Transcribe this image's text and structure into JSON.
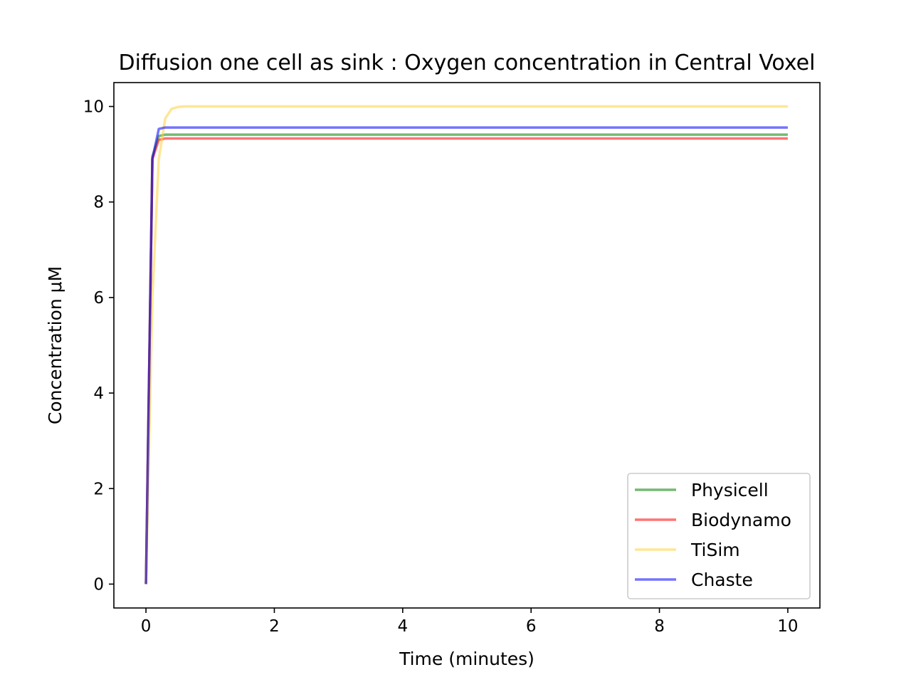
{
  "chart_data": {
    "type": "line",
    "title": "Diffusion one cell as sink : Oxygen concentration in Central Voxel",
    "xlabel": "Time (minutes)",
    "ylabel": "Concentration μM",
    "xlim": [
      -0.5,
      10.5
    ],
    "ylim": [
      -0.5,
      10.5
    ],
    "xticks": [
      0,
      2,
      4,
      6,
      8,
      10
    ],
    "yticks": [
      0,
      2,
      4,
      6,
      8,
      10
    ],
    "grid": false,
    "legend_position": "bottom-right",
    "series": [
      {
        "name": "Physicell",
        "color": "#008000",
        "x": [
          0,
          0.1,
          0.2,
          0.3,
          1,
          2,
          4,
          6,
          8,
          10
        ],
        "y": [
          0,
          8.95,
          9.38,
          9.41,
          9.41,
          9.41,
          9.41,
          9.41,
          9.41,
          9.41
        ]
      },
      {
        "name": "Biodynamo",
        "color": "#ff0000",
        "x": [
          0,
          0.1,
          0.2,
          0.3,
          1,
          2,
          4,
          6,
          8,
          10
        ],
        "y": [
          0,
          8.9,
          9.3,
          9.33,
          9.33,
          9.33,
          9.33,
          9.33,
          9.33,
          9.33
        ]
      },
      {
        "name": "TiSim",
        "color": "#ffd23f",
        "x": [
          0,
          0.1,
          0.2,
          0.3,
          0.4,
          0.5,
          0.6,
          1,
          2,
          4,
          6,
          8,
          10
        ],
        "y": [
          0,
          6.0,
          8.9,
          9.75,
          9.95,
          9.99,
          10.0,
          10.0,
          10.0,
          10.0,
          10.0,
          10.0,
          10.0
        ]
      },
      {
        "name": "Chaste",
        "color": "#0000ff",
        "x": [
          0,
          0.1,
          0.2,
          0.3,
          1,
          2,
          4,
          6,
          8,
          10
        ],
        "y": [
          0,
          8.9,
          9.53,
          9.56,
          9.56,
          9.56,
          9.56,
          9.56,
          9.56,
          9.56
        ]
      }
    ]
  }
}
